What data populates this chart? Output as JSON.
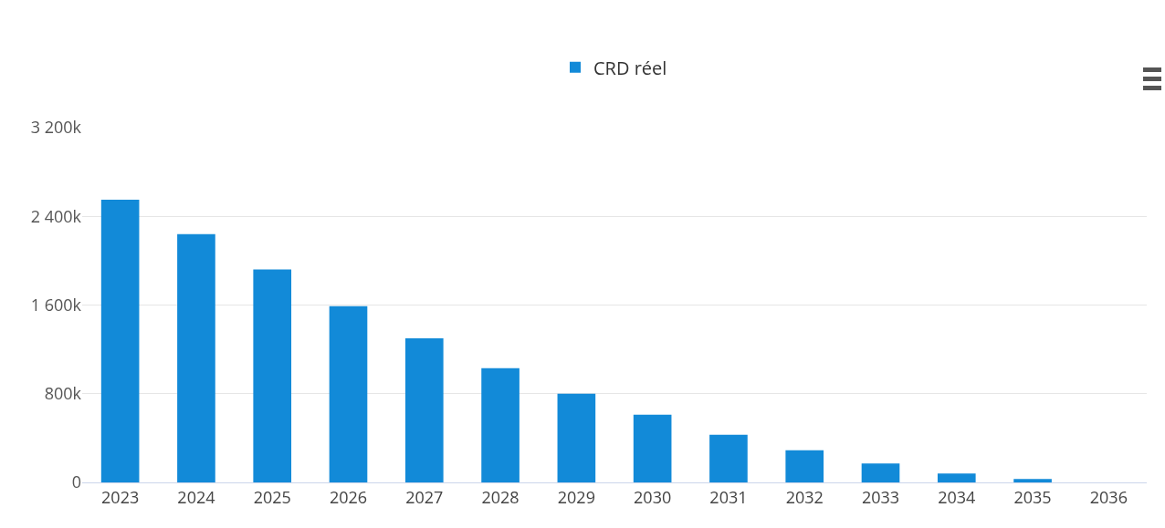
{
  "chart_data": {
    "type": "bar",
    "categories": [
      "2023",
      "2024",
      "2025",
      "2026",
      "2027",
      "2028",
      "2029",
      "2030",
      "2031",
      "2032",
      "2033",
      "2034",
      "2035",
      "2036"
    ],
    "series": [
      {
        "name": "CRD réel",
        "color": "#128ad8",
        "values": [
          2550,
          2240,
          1920,
          1590,
          1300,
          1030,
          800,
          610,
          430,
          290,
          170,
          80,
          30,
          0
        ]
      }
    ],
    "ylim": [
      0,
      3200
    ],
    "yticks": [
      {
        "value": 0,
        "label": "0"
      },
      {
        "value": 800,
        "label": "800k"
      },
      {
        "value": 1600,
        "label": "1 600k"
      },
      {
        "value": 2400,
        "label": "2 400k"
      },
      {
        "value": 3200,
        "label": "3 200k"
      }
    ],
    "grid": "y",
    "legend": "top"
  }
}
